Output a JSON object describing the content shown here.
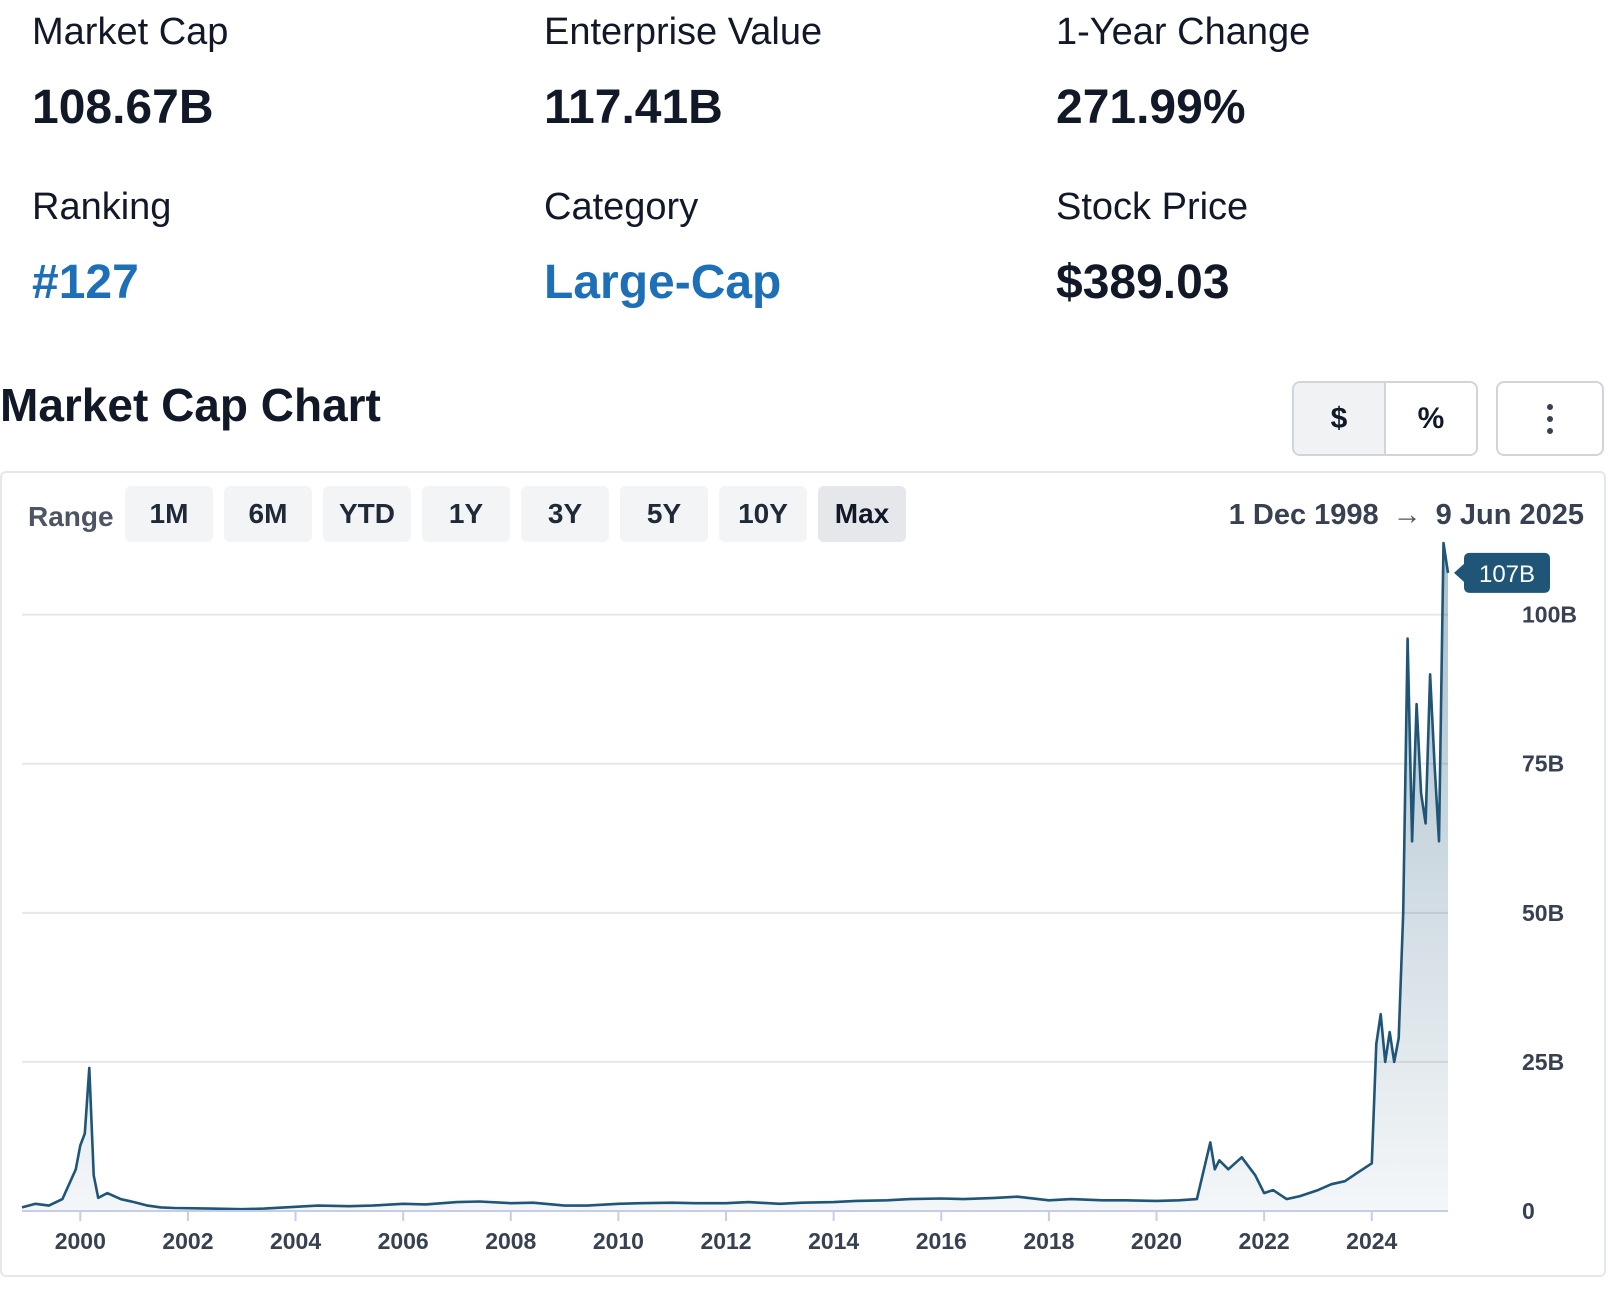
{
  "stats": [
    {
      "label": "Market Cap",
      "value": "108.67B",
      "link": false
    },
    {
      "label": "Enterprise Value",
      "value": "117.41B",
      "link": false
    },
    {
      "label": "1-Year Change",
      "value": "271.99%",
      "link": false
    },
    {
      "label": "Ranking",
      "value": "#127",
      "link": true
    },
    {
      "label": "Category",
      "value": "Large-Cap",
      "link": true
    },
    {
      "label": "Stock Price",
      "value": "$389.03",
      "link": false
    }
  ],
  "chart_section": {
    "title": "Market Cap Chart",
    "currency_toggle": "$",
    "percent_toggle": "%",
    "range_label": "Range",
    "ranges": [
      "1M",
      "6M",
      "YTD",
      "1Y",
      "3Y",
      "5Y",
      "10Y",
      "Max"
    ],
    "active_range": "Max",
    "date_from": "1 Dec 1998",
    "date_arrow": "→",
    "date_to": "9 Jun 2025",
    "tooltip_value": "107B"
  },
  "colors": {
    "line": "#1f5577",
    "link": "#1d6fb8"
  },
  "chart_data": {
    "type": "area",
    "y_unit": "B (billions USD)",
    "xlim": [
      "1998-12",
      "2025-06"
    ],
    "ylim": [
      0,
      110
    ],
    "y_ticks": [
      0,
      25,
      50,
      75,
      100
    ],
    "y_tick_labels": [
      "0",
      "25B",
      "50B",
      "75B",
      "100B"
    ],
    "x_tick_labels": [
      "2000",
      "2002",
      "2004",
      "2006",
      "2008",
      "2010",
      "2012",
      "2014",
      "2016",
      "2018",
      "2020",
      "2022",
      "2024"
    ],
    "grid": true,
    "x": [
      "1998-12",
      "1999-03",
      "1999-06",
      "1999-09",
      "1999-12",
      "2000-01",
      "2000-02",
      "2000-03",
      "2000-04",
      "2000-05",
      "2000-07",
      "2000-10",
      "2001-01",
      "2001-04",
      "2001-07",
      "2001-10",
      "2002-06",
      "2003-01",
      "2003-06",
      "2004-01",
      "2004-06",
      "2005-01",
      "2005-06",
      "2006-01",
      "2006-06",
      "2007-01",
      "2007-06",
      "2008-01",
      "2008-06",
      "2009-01",
      "2009-06",
      "2010-01",
      "2010-06",
      "2011-01",
      "2011-06",
      "2012-01",
      "2012-06",
      "2013-01",
      "2013-06",
      "2014-01",
      "2014-06",
      "2015-01",
      "2015-06",
      "2016-01",
      "2016-06",
      "2017-01",
      "2017-06",
      "2018-01",
      "2018-06",
      "2019-01",
      "2019-06",
      "2020-01",
      "2020-06",
      "2020-10",
      "2021-01",
      "2021-02",
      "2021-03",
      "2021-05",
      "2021-08",
      "2021-11",
      "2022-01",
      "2022-03",
      "2022-06",
      "2022-09",
      "2023-01",
      "2023-04",
      "2023-07",
      "2023-10",
      "2024-01",
      "2024-02",
      "2024-03",
      "2024-04",
      "2024-05",
      "2024-06",
      "2024-07",
      "2024-08",
      "2024-09",
      "2024-10",
      "2024-11",
      "2024-12",
      "2025-01",
      "2025-02",
      "2025-03",
      "2025-04",
      "2025-05",
      "2025-06"
    ],
    "values": [
      0.6,
      1.2,
      0.9,
      2.0,
      7.0,
      11.0,
      13.0,
      24.0,
      6.0,
      2.2,
      3.0,
      2.0,
      1.5,
      0.9,
      0.6,
      0.5,
      0.4,
      0.3,
      0.4,
      0.7,
      0.9,
      0.8,
      0.9,
      1.2,
      1.1,
      1.5,
      1.6,
      1.3,
      1.4,
      0.9,
      0.9,
      1.2,
      1.3,
      1.4,
      1.3,
      1.3,
      1.5,
      1.2,
      1.4,
      1.5,
      1.7,
      1.8,
      2.0,
      2.1,
      2.0,
      2.2,
      2.4,
      1.8,
      2.0,
      1.8,
      1.8,
      1.7,
      1.8,
      2.0,
      11.5,
      7.0,
      8.5,
      7.0,
      9.0,
      6.0,
      3.0,
      3.5,
      2.0,
      2.5,
      3.5,
      4.5,
      5.0,
      6.5,
      8.0,
      28.0,
      33.0,
      25.0,
      30.0,
      25.0,
      29.0,
      50.0,
      96.0,
      62.0,
      85.0,
      70.0,
      65.0,
      90.0,
      75.0,
      62.0,
      112.0,
      107.0
    ]
  }
}
